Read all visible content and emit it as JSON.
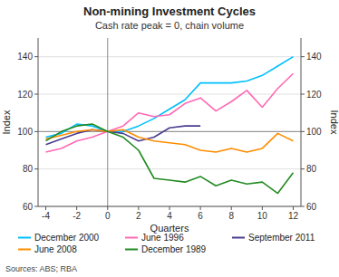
{
  "chart_data": {
    "type": "line",
    "title": "Non-mining Investment Cycles",
    "subtitle": "Cash rate peak = 0, chain volume",
    "xlabel": "Quarters",
    "ylabel": "Index",
    "y2label": "Index",
    "source": "Sources: ABS; RBA",
    "x": [
      -4,
      -3,
      -2,
      -1,
      0,
      1,
      2,
      3,
      4,
      5,
      6,
      7,
      8,
      9,
      10,
      11,
      12
    ],
    "xlim": [
      -4.5,
      12.5
    ],
    "xticks": [
      -4,
      -2,
      0,
      2,
      4,
      6,
      8,
      10,
      12
    ],
    "ylim": [
      60,
      150
    ],
    "yticks": [
      60,
      80,
      100,
      120,
      140
    ],
    "y2lim": [
      60,
      150
    ],
    "y2ticks": [
      60,
      80,
      100,
      120,
      140
    ],
    "grid": true,
    "legend": "bottom",
    "reference_lines": [
      {
        "axis": "x",
        "value": 0
      },
      {
        "axis": "y",
        "value": 100
      }
    ],
    "series": [
      {
        "name": "December 2000",
        "color": "#00BFFF",
        "values": [
          97,
          99,
          104,
          103,
          100,
          100,
          103,
          107,
          112,
          117,
          126,
          126,
          126,
          127,
          130,
          135,
          140
        ]
      },
      {
        "name": "June 1996",
        "color": "#FF69B4",
        "values": [
          89,
          91,
          95,
          97,
          100,
          103,
          110,
          108,
          109,
          115,
          118,
          111,
          116,
          122,
          113,
          123,
          131
        ]
      },
      {
        "name": "September 2011",
        "color": "#4B3D8F",
        "values": [
          93,
          96,
          99,
          101,
          100,
          99,
          95,
          97,
          102,
          103,
          103,
          null,
          null,
          null,
          null,
          null,
          null
        ]
      },
      {
        "name": "June 2008",
        "color": "#FF8C00",
        "values": [
          96,
          98,
          100,
          101,
          100,
          101,
          97,
          95,
          94,
          93,
          90,
          89,
          91,
          89,
          91,
          99,
          95
        ]
      },
      {
        "name": "December 1989",
        "color": "#228B22",
        "values": [
          95,
          100,
          103,
          104,
          100,
          97,
          90,
          75,
          74,
          73,
          76,
          71,
          74,
          72,
          73,
          67,
          78
        ]
      }
    ]
  }
}
